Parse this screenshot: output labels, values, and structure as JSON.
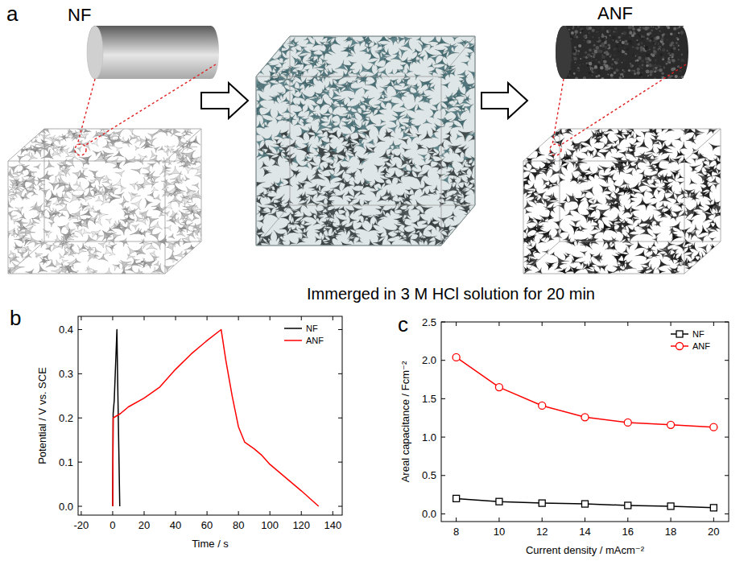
{
  "diagram": {
    "panel_label": "a",
    "left_label": "NF",
    "right_label": "ANF",
    "caption": "Immerged in 3 M HCl solution for 20 min"
  },
  "chart_data": [
    {
      "type": "line",
      "panel_label": "b",
      "x_label": "Time / s",
      "y_label": "Potential / V vs. SCE",
      "xlim": [
        -22,
        146
      ],
      "xticks": [
        -20,
        0,
        20,
        40,
        60,
        80,
        100,
        120,
        140
      ],
      "ylim": [
        -0.02,
        0.43
      ],
      "yticks": [
        {
          "value": 0,
          "label": "0.0"
        },
        0.1,
        0.2,
        0.3,
        0.4
      ],
      "grid": false,
      "legend": "upper right",
      "series": [
        {
          "name": "NF",
          "color": "#000000",
          "x": [
            0,
            0.3,
            1,
            2.7,
            3.1,
            4.5
          ],
          "values": [
            0,
            0.21,
            0.24,
            0.4,
            0.3,
            0
          ]
        },
        {
          "name": "ANF",
          "color": "#ff0000",
          "x": [
            0,
            0.3,
            5,
            10,
            20,
            30,
            40,
            50,
            60,
            69,
            72,
            76,
            80,
            84,
            90,
            95,
            100,
            110,
            120,
            131
          ],
          "values": [
            0,
            0.2,
            0.21,
            0.225,
            0.245,
            0.27,
            0.31,
            0.345,
            0.375,
            0.4,
            0.33,
            0.25,
            0.18,
            0.145,
            0.13,
            0.115,
            0.095,
            0.065,
            0.035,
            0
          ]
        }
      ]
    },
    {
      "type": "line",
      "panel_label": "c",
      "x_label": "Current density / mAcm⁻²",
      "y_label": "Areal capacitance / Fcm⁻²",
      "x": [
        8,
        10,
        12,
        14,
        16,
        18,
        20
      ],
      "xlim": [
        7.3,
        20.7
      ],
      "xticks": [
        8,
        10,
        12,
        14,
        16,
        18,
        20
      ],
      "ylim": [
        -0.1,
        2.5
      ],
      "yticks": [
        {
          "value": 0,
          "label": "0.0"
        },
        0.5,
        {
          "value": 1,
          "label": "1.0"
        },
        1.5,
        {
          "value": 2,
          "label": "2.0"
        },
        2.5
      ],
      "grid": false,
      "legend": "upper right",
      "series": [
        {
          "name": "NF",
          "color": "#000000",
          "marker": "square",
          "values": [
            0.2,
            0.16,
            0.14,
            0.13,
            0.11,
            0.1,
            0.08
          ]
        },
        {
          "name": "ANF",
          "color": "#ff0000",
          "marker": "circle",
          "values": [
            2.04,
            1.65,
            1.41,
            1.26,
            1.19,
            1.16,
            1.13
          ]
        }
      ]
    }
  ]
}
